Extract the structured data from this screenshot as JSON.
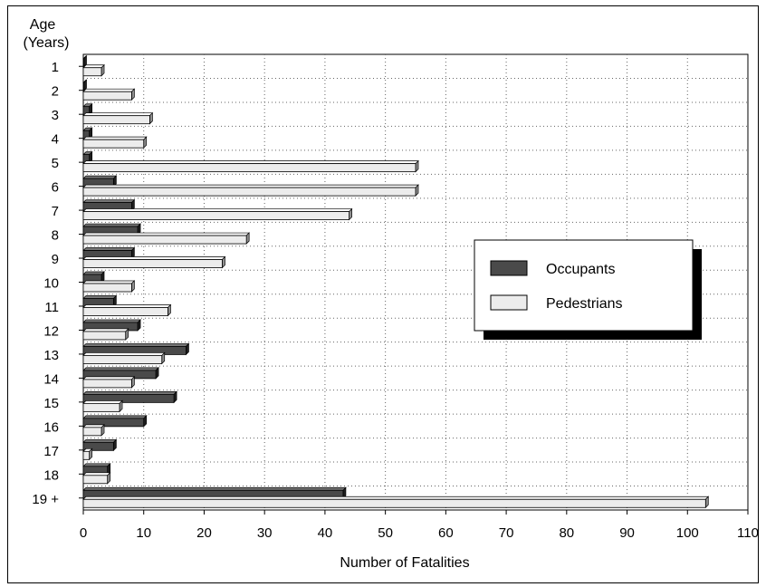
{
  "chart_data": {
    "type": "bar",
    "orientation": "horizontal",
    "ylabel_lines": [
      "Age",
      "(Years)"
    ],
    "xlabel": "Number of Fatalities",
    "categories": [
      "1",
      "2",
      "3",
      "4",
      "5",
      "6",
      "7",
      "8",
      "9",
      "10",
      "11",
      "12",
      "13",
      "14",
      "15",
      "16",
      "17",
      "18",
      "19 +"
    ],
    "series": [
      {
        "name": "Occupants",
        "values": [
          0,
          0,
          1,
          1,
          1,
          5,
          8,
          9,
          8,
          3,
          5,
          9,
          17,
          12,
          15,
          10,
          5,
          4,
          43
        ],
        "color": "#4a4a4a"
      },
      {
        "name": "Pedestrians",
        "values": [
          3,
          8,
          11,
          10,
          55,
          55,
          44,
          27,
          23,
          8,
          14,
          7,
          13,
          8,
          6,
          3,
          1,
          4,
          103
        ],
        "color": "#ececec"
      }
    ],
    "xlim": [
      0,
      110
    ],
    "xticks": [
      "0",
      "10",
      "20",
      "30",
      "40",
      "50",
      "60",
      "70",
      "80",
      "90",
      "100",
      "110"
    ],
    "grid": true,
    "legend_position": "right"
  }
}
